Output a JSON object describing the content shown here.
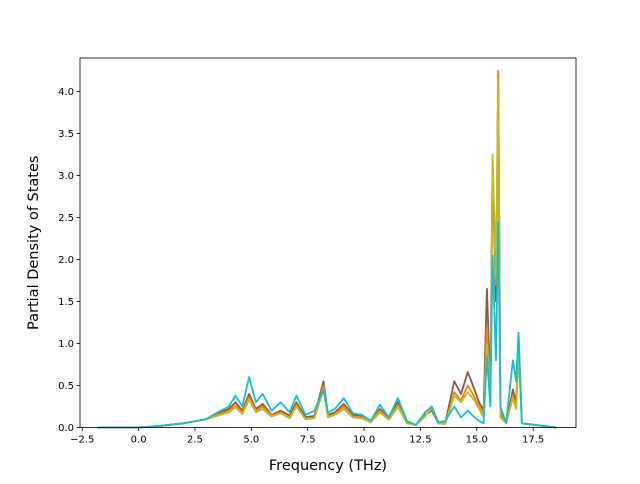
{
  "chart_data": {
    "type": "line",
    "title": "",
    "xlabel": "Frequency (THz)",
    "ylabel": "Partial Density of States",
    "xlim": [
      -2.6,
      19.4
    ],
    "ylim": [
      0.0,
      4.4
    ],
    "xticks": [
      -2.5,
      0.0,
      2.5,
      5.0,
      7.5,
      10.0,
      12.5,
      15.0,
      17.5
    ],
    "xtick_labels": [
      "−2.5",
      "0.0",
      "2.5",
      "5.0",
      "7.5",
      "10.0",
      "12.5",
      "15.0",
      "17.5"
    ],
    "yticks": [
      0.0,
      0.5,
      1.0,
      1.5,
      2.0,
      2.5,
      3.0,
      3.5,
      4.0
    ],
    "ytick_labels": [
      "0.0",
      "0.5",
      "1.0",
      "1.5",
      "2.0",
      "2.5",
      "3.0",
      "3.5",
      "4.0"
    ],
    "grid": false,
    "legend": "none",
    "series": [
      {
        "color": "#8c564b",
        "x": [
          -1.8,
          0,
          1.0,
          2.0,
          3.0,
          3.5,
          4.0,
          4.3,
          4.6,
          4.9,
          5.2,
          5.5,
          5.9,
          6.3,
          6.7,
          7.0,
          7.4,
          7.8,
          8.2,
          8.4,
          8.7,
          9.1,
          9.5,
          9.9,
          10.3,
          10.7,
          11.1,
          11.5,
          11.9,
          12.3,
          12.7,
          13.0,
          13.3,
          13.6,
          14.0,
          14.3,
          14.6,
          14.9,
          15.1,
          15.3,
          15.45,
          15.6,
          15.7,
          15.85,
          15.95,
          16.05,
          16.3,
          16.6,
          16.75,
          16.85,
          17.0,
          18.5
        ],
        "y": [
          0,
          0,
          0.02,
          0.05,
          0.1,
          0.17,
          0.22,
          0.3,
          0.2,
          0.4,
          0.22,
          0.28,
          0.15,
          0.2,
          0.14,
          0.3,
          0.12,
          0.14,
          0.55,
          0.15,
          0.18,
          0.28,
          0.15,
          0.14,
          0.08,
          0.22,
          0.12,
          0.3,
          0.06,
          0.03,
          0.15,
          0.2,
          0.05,
          0.05,
          0.55,
          0.4,
          0.66,
          0.45,
          0.3,
          0.2,
          1.65,
          0.45,
          3.1,
          1.5,
          4.2,
          0.2,
          0.05,
          0.45,
          0.3,
          1.1,
          0.05,
          0
        ]
      },
      {
        "color": "#ff7f0e",
        "x": [
          -1.8,
          0,
          1.0,
          2.0,
          3.0,
          3.5,
          4.0,
          4.3,
          4.6,
          4.9,
          5.2,
          5.5,
          5.9,
          6.3,
          6.7,
          7.0,
          7.4,
          7.8,
          8.2,
          8.4,
          8.7,
          9.1,
          9.5,
          9.9,
          10.3,
          10.7,
          11.1,
          11.5,
          11.9,
          12.3,
          12.7,
          13.0,
          13.3,
          13.6,
          14.0,
          14.3,
          14.6,
          14.9,
          15.1,
          15.3,
          15.45,
          15.6,
          15.7,
          15.85,
          15.95,
          16.05,
          16.3,
          16.6,
          16.75,
          16.85,
          17.0,
          18.5
        ],
        "y": [
          0,
          0,
          0.02,
          0.05,
          0.1,
          0.15,
          0.2,
          0.26,
          0.18,
          0.36,
          0.2,
          0.25,
          0.14,
          0.18,
          0.12,
          0.27,
          0.1,
          0.12,
          0.5,
          0.13,
          0.16,
          0.25,
          0.13,
          0.12,
          0.07,
          0.2,
          0.1,
          0.27,
          0.05,
          0.03,
          0.14,
          0.22,
          0.05,
          0.04,
          0.42,
          0.32,
          0.5,
          0.36,
          0.25,
          0.15,
          1.2,
          0.35,
          3.2,
          1.7,
          4.25,
          0.15,
          0.05,
          0.38,
          0.25,
          0.95,
          0.05,
          0
        ]
      },
      {
        "color": "#bcbd22",
        "x": [
          -1.8,
          0,
          1.0,
          2.0,
          3.0,
          3.5,
          4.0,
          4.3,
          4.6,
          4.9,
          5.2,
          5.5,
          5.9,
          6.3,
          6.7,
          7.0,
          7.4,
          7.8,
          8.2,
          8.4,
          8.7,
          9.1,
          9.5,
          9.9,
          10.3,
          10.7,
          11.1,
          11.5,
          11.9,
          12.3,
          12.7,
          13.0,
          13.3,
          13.6,
          14.0,
          14.3,
          14.6,
          14.9,
          15.1,
          15.3,
          15.45,
          15.6,
          15.7,
          15.85,
          15.95,
          16.05,
          16.3,
          16.6,
          16.75,
          16.85,
          17.0,
          18.5
        ],
        "y": [
          0,
          0,
          0.02,
          0.05,
          0.1,
          0.14,
          0.18,
          0.24,
          0.16,
          0.33,
          0.18,
          0.22,
          0.13,
          0.17,
          0.11,
          0.25,
          0.1,
          0.11,
          0.45,
          0.12,
          0.15,
          0.22,
          0.12,
          0.11,
          0.06,
          0.18,
          0.09,
          0.25,
          0.05,
          0.03,
          0.13,
          0.24,
          0.05,
          0.04,
          0.38,
          0.3,
          0.42,
          0.32,
          0.22,
          0.12,
          1.0,
          0.3,
          3.25,
          1.8,
          4.15,
          0.12,
          0.05,
          0.35,
          0.22,
          0.9,
          0.05,
          0
        ]
      },
      {
        "color": "#17becf",
        "x": [
          -1.8,
          0,
          1.0,
          2.0,
          3.0,
          3.5,
          4.0,
          4.3,
          4.6,
          4.9,
          5.2,
          5.5,
          5.9,
          6.3,
          6.7,
          7.0,
          7.4,
          7.8,
          8.2,
          8.4,
          8.7,
          9.1,
          9.5,
          9.9,
          10.3,
          10.7,
          11.1,
          11.5,
          11.9,
          12.3,
          12.7,
          13.0,
          13.3,
          13.6,
          14.0,
          14.3,
          14.6,
          14.9,
          15.1,
          15.3,
          15.45,
          15.6,
          15.7,
          15.85,
          15.95,
          16.05,
          16.3,
          16.6,
          16.75,
          16.85,
          17.0,
          18.5
        ],
        "y": [
          0,
          0,
          0.02,
          0.05,
          0.1,
          0.18,
          0.25,
          0.38,
          0.25,
          0.6,
          0.3,
          0.4,
          0.2,
          0.3,
          0.18,
          0.38,
          0.15,
          0.2,
          0.45,
          0.18,
          0.22,
          0.35,
          0.17,
          0.15,
          0.08,
          0.27,
          0.12,
          0.35,
          0.08,
          0.03,
          0.18,
          0.25,
          0.06,
          0.08,
          0.25,
          0.12,
          0.2,
          0.12,
          0.08,
          0.05,
          0.85,
          0.25,
          2.05,
          0.8,
          2.45,
          0.25,
          0.05,
          0.8,
          0.55,
          1.13,
          0.05,
          0
        ]
      }
    ]
  }
}
